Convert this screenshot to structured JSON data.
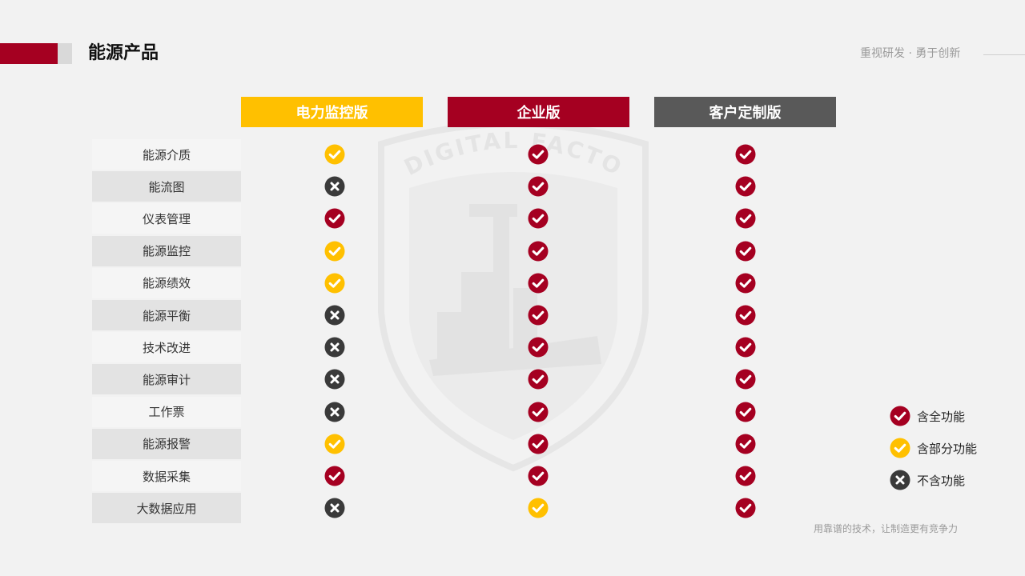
{
  "header": {
    "title": "能源产品",
    "slogan": "重视研发 · 勇于创新"
  },
  "columns": [
    "电力监控版",
    "企业版",
    "客户定制版"
  ],
  "rows": [
    {
      "label": "能源介质",
      "marks": [
        "partial",
        "full",
        "full"
      ]
    },
    {
      "label": "能流图",
      "marks": [
        "none",
        "full",
        "full"
      ]
    },
    {
      "label": "仪表管理",
      "marks": [
        "full",
        "full",
        "full"
      ]
    },
    {
      "label": "能源监控",
      "marks": [
        "partial",
        "full",
        "full"
      ]
    },
    {
      "label": "能源绩效",
      "marks": [
        "partial",
        "full",
        "full"
      ]
    },
    {
      "label": "能源平衡",
      "marks": [
        "none",
        "full",
        "full"
      ]
    },
    {
      "label": "技术改进",
      "marks": [
        "none",
        "full",
        "full"
      ]
    },
    {
      "label": "能源审计",
      "marks": [
        "none",
        "full",
        "full"
      ]
    },
    {
      "label": "工作票",
      "marks": [
        "none",
        "full",
        "full"
      ]
    },
    {
      "label": "能源报警",
      "marks": [
        "partial",
        "full",
        "full"
      ]
    },
    {
      "label": "数据采集",
      "marks": [
        "full",
        "full",
        "full"
      ]
    },
    {
      "label": "大数据应用",
      "marks": [
        "none",
        "partial",
        "full"
      ]
    }
  ],
  "legend": [
    {
      "type": "full",
      "label": "含全功能"
    },
    {
      "type": "partial",
      "label": "含部分功能"
    },
    {
      "type": "none",
      "label": "不含功能"
    }
  ],
  "watermark_text": "DIGITAL FACTORY",
  "footer": "用靠谱的技术，让制造更有竞争力",
  "colors": {
    "accent_red": "#a50021",
    "accent_yellow": "#ffc000",
    "dark_gray": "#595959",
    "icon_dark": "#3a3a3a"
  }
}
